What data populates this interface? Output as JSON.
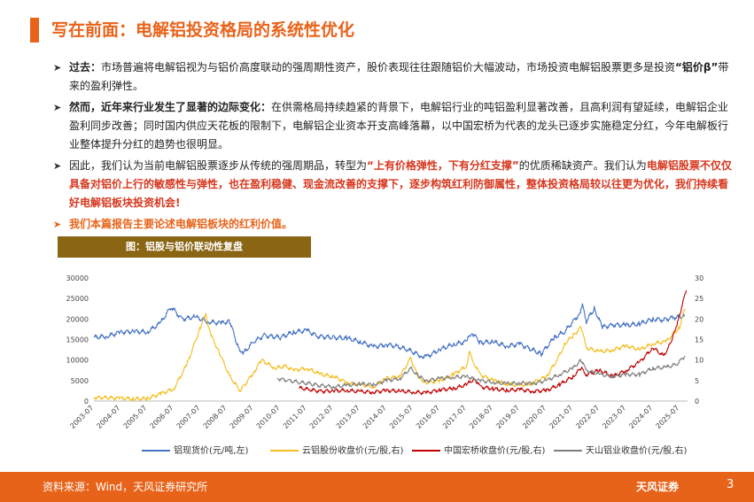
{
  "header": {
    "title": "写在前面：电解铝投资格局的系统性优化"
  },
  "bullets": {
    "b1": {
      "lead": "过去：",
      "text1": "市场普遍将电解铝视为与铝价高度联动的强周期性资产，股价表现往往跟随铝价大幅波动，市场投资电解铝股票更多是投资",
      "quote": "“铝价β”",
      "text2": "带来的盈利弹性。"
    },
    "b2": {
      "lead": "然而，近年来行业发生了显著的边际变化：",
      "text": "在供需格局持续趋紧的背景下，电解铝行业的吨铝盈利显著改善，且高利润有望延续，电解铝企业盈利同步改善；同时国内供应天花板的限制下，电解铝企业资本开支高峰落幕，以中国宏桥为代表的龙头已逐步实施稳定分红，今年电解板行业整体提升分红的趋势也很明显。"
    },
    "b3": {
      "text1": "因此，我们认为当前电解铝股票逐步从传统的强周期品，转型为",
      "emph1": "“上有价格弹性，下有分红支撑”",
      "text2": "的优质稀缺资产。我们认为",
      "emph2": "电解铝股票不仅仅具备对铝价上行的敏感性与弹性，也在盈利稳健、现金流改善的支撑下，逐步构筑红利防御属性，整体投资格局较以往更为优化，我们持续看好电解铝板块投资机会!"
    },
    "b4": {
      "text": "我们本篇报告主要论述电解铝板块的红利价值。"
    }
  },
  "figure": {
    "title": "图：铝股与铝价联动性复盘"
  },
  "chart_data": {
    "type": "line",
    "x_ticks": [
      "2003-07",
      "2004-07",
      "2005-07",
      "2006-07",
      "2007-07",
      "2008-07",
      "2009-07",
      "2010-07",
      "2011-07",
      "2012-07",
      "2013-07",
      "2014-07",
      "2015-07",
      "2016-07",
      "2017-07",
      "2018-07",
      "2019-07",
      "2020-07",
      "2021-07",
      "2022-07",
      "2023-07",
      "2024-07",
      "2025-07"
    ],
    "x_range": [
      2003.5,
      2025.8
    ],
    "y_left": {
      "ticks": [
        0,
        5000,
        10000,
        15000,
        20000,
        25000,
        30000
      ],
      "lim": [
        0,
        30000
      ]
    },
    "y_right": {
      "ticks": [
        0,
        5,
        10,
        15,
        20,
        25,
        30
      ],
      "lim": [
        0,
        30
      ]
    },
    "grid": false,
    "legend_position": "bottom",
    "series": [
      {
        "name": "铝现货价(元/吨,左)",
        "axis": "left",
        "color": "#4472c4",
        "points": [
          [
            2003.5,
            15500
          ],
          [
            2004.0,
            15800
          ],
          [
            2004.5,
            16800
          ],
          [
            2005.0,
            17000
          ],
          [
            2005.5,
            16800
          ],
          [
            2006.0,
            19000
          ],
          [
            2006.4,
            23000
          ],
          [
            2006.8,
            20000
          ],
          [
            2007.3,
            20500
          ],
          [
            2007.8,
            19300
          ],
          [
            2008.3,
            19000
          ],
          [
            2008.6,
            19500
          ],
          [
            2008.9,
            13500
          ],
          [
            2009.1,
            11500
          ],
          [
            2009.5,
            14500
          ],
          [
            2009.9,
            16000
          ],
          [
            2010.5,
            15500
          ],
          [
            2011.0,
            16800
          ],
          [
            2011.5,
            17200
          ],
          [
            2011.9,
            15800
          ],
          [
            2012.5,
            15500
          ],
          [
            2013.0,
            15300
          ],
          [
            2013.5,
            14500
          ],
          [
            2014.0,
            13200
          ],
          [
            2014.5,
            13800
          ],
          [
            2014.9,
            13300
          ],
          [
            2015.3,
            12500
          ],
          [
            2015.8,
            11000
          ],
          [
            2016.0,
            10800
          ],
          [
            2016.5,
            12600
          ],
          [
            2017.0,
            13800
          ],
          [
            2017.5,
            14500
          ],
          [
            2017.7,
            16800
          ],
          [
            2018.0,
            14300
          ],
          [
            2018.5,
            14400
          ],
          [
            2019.0,
            13400
          ],
          [
            2019.5,
            13900
          ],
          [
            2020.3,
            11500
          ],
          [
            2020.8,
            15500
          ],
          [
            2021.2,
            17000
          ],
          [
            2021.7,
            21000
          ],
          [
            2021.85,
            23300
          ],
          [
            2022.0,
            19500
          ],
          [
            2022.3,
            22500
          ],
          [
            2022.6,
            18000
          ],
          [
            2023.0,
            18600
          ],
          [
            2023.5,
            18500
          ],
          [
            2024.0,
            18800
          ],
          [
            2024.5,
            20000
          ],
          [
            2024.9,
            19800
          ],
          [
            2025.3,
            20400
          ],
          [
            2025.7,
            20700
          ]
        ]
      },
      {
        "name": "云铝股份收盘价(元/股,右)",
        "axis": "right",
        "color": "#f4bc1c",
        "points": [
          [
            2003.5,
            0.9
          ],
          [
            2004.5,
            0.7
          ],
          [
            2005.0,
            0.5
          ],
          [
            2005.5,
            0.6
          ],
          [
            2006.0,
            1.8
          ],
          [
            2006.5,
            3.0
          ],
          [
            2007.0,
            9.0
          ],
          [
            2007.5,
            18.0
          ],
          [
            2007.7,
            21.0
          ],
          [
            2007.9,
            16.0
          ],
          [
            2008.2,
            12.0
          ],
          [
            2008.6,
            6.0
          ],
          [
            2009.0,
            2.5
          ],
          [
            2009.5,
            7.0
          ],
          [
            2009.8,
            10.0
          ],
          [
            2010.3,
            8.0
          ],
          [
            2010.7,
            8.5
          ],
          [
            2011.0,
            7.5
          ],
          [
            2011.5,
            8.0
          ],
          [
            2012.0,
            6.5
          ],
          [
            2012.5,
            6.0
          ],
          [
            2013.0,
            4.5
          ],
          [
            2013.5,
            4.0
          ],
          [
            2014.0,
            3.5
          ],
          [
            2014.5,
            5.5
          ],
          [
            2015.0,
            6.0
          ],
          [
            2015.4,
            10.5
          ],
          [
            2015.7,
            5.5
          ],
          [
            2016.0,
            4.5
          ],
          [
            2016.5,
            5.0
          ],
          [
            2017.0,
            6.5
          ],
          [
            2017.5,
            8.5
          ],
          [
            2017.6,
            12.0
          ],
          [
            2017.8,
            9.0
          ],
          [
            2018.0,
            6.5
          ],
          [
            2018.5,
            5.0
          ],
          [
            2019.0,
            4.2
          ],
          [
            2019.5,
            3.8
          ],
          [
            2020.0,
            4.5
          ],
          [
            2020.5,
            6.0
          ],
          [
            2020.9,
            10.0
          ],
          [
            2021.2,
            14.0
          ],
          [
            2021.5,
            16.0
          ],
          [
            2021.8,
            18.0
          ],
          [
            2022.0,
            13.0
          ],
          [
            2022.5,
            12.0
          ],
          [
            2023.0,
            12.5
          ],
          [
            2023.5,
            13.5
          ],
          [
            2024.0,
            12.5
          ],
          [
            2024.5,
            14.0
          ],
          [
            2025.0,
            14.5
          ],
          [
            2025.5,
            18.0
          ],
          [
            2025.7,
            22.5
          ]
        ]
      },
      {
        "name": "中国宏桥收盘价(元/股,右)",
        "axis": "right",
        "color": "#c00000",
        "points": [
          [
            2011.2,
            3.2
          ],
          [
            2011.6,
            2.8
          ],
          [
            2012.0,
            2.4
          ],
          [
            2012.5,
            2.5
          ],
          [
            2013.0,
            2.6
          ],
          [
            2013.5,
            2.3
          ],
          [
            2014.0,
            2.2
          ],
          [
            2014.5,
            2.6
          ],
          [
            2015.0,
            2.4
          ],
          [
            2015.5,
            2.2
          ],
          [
            2016.0,
            2.0
          ],
          [
            2016.5,
            2.8
          ],
          [
            2017.0,
            3.0
          ],
          [
            2017.5,
            4.0
          ],
          [
            2017.8,
            5.5
          ],
          [
            2018.0,
            3.5
          ],
          [
            2018.5,
            3.0
          ],
          [
            2019.0,
            2.6
          ],
          [
            2019.5,
            2.8
          ],
          [
            2020.0,
            2.4
          ],
          [
            2020.5,
            2.6
          ],
          [
            2021.0,
            4.0
          ],
          [
            2021.5,
            6.0
          ],
          [
            2021.8,
            8.0
          ],
          [
            2022.0,
            6.5
          ],
          [
            2022.5,
            7.5
          ],
          [
            2023.0,
            6.0
          ],
          [
            2023.5,
            7.5
          ],
          [
            2024.0,
            9.5
          ],
          [
            2024.5,
            13.0
          ],
          [
            2024.9,
            11.0
          ],
          [
            2025.2,
            14.5
          ],
          [
            2025.5,
            21.0
          ],
          [
            2025.75,
            27.0
          ]
        ]
      },
      {
        "name": "天山铝业收盘价(元/股,右)",
        "axis": "right",
        "color": "#7f7f7f",
        "points": [
          [
            2010.4,
            5.5
          ],
          [
            2010.8,
            5.0
          ],
          [
            2011.2,
            4.6
          ],
          [
            2011.6,
            4.2
          ],
          [
            2012.0,
            3.8
          ],
          [
            2012.5,
            3.5
          ],
          [
            2013.0,
            3.8
          ],
          [
            2013.5,
            4.2
          ],
          [
            2014.0,
            4.0
          ],
          [
            2014.5,
            5.0
          ],
          [
            2015.0,
            5.5
          ],
          [
            2015.4,
            8.0
          ],
          [
            2015.7,
            6.0
          ],
          [
            2016.0,
            5.0
          ],
          [
            2016.5,
            5.5
          ],
          [
            2017.0,
            5.8
          ],
          [
            2017.5,
            6.0
          ],
          [
            2018.0,
            5.0
          ],
          [
            2018.5,
            4.6
          ],
          [
            2019.0,
            4.2
          ],
          [
            2019.5,
            4.4
          ],
          [
            2020.0,
            4.3
          ],
          [
            2020.5,
            5.0
          ],
          [
            2021.0,
            6.5
          ],
          [
            2021.5,
            8.0
          ],
          [
            2021.8,
            10.0
          ],
          [
            2022.0,
            7.5
          ],
          [
            2022.5,
            6.5
          ],
          [
            2023.0,
            6.0
          ],
          [
            2023.5,
            6.5
          ],
          [
            2024.0,
            6.5
          ],
          [
            2024.5,
            8.0
          ],
          [
            2025.0,
            8.2
          ],
          [
            2025.4,
            9.0
          ],
          [
            2025.7,
            11.0
          ]
        ]
      }
    ]
  },
  "footer": {
    "source": "资料来源：Wind，天风证券研究所",
    "logo_text": "天风证券",
    "page": "3"
  }
}
